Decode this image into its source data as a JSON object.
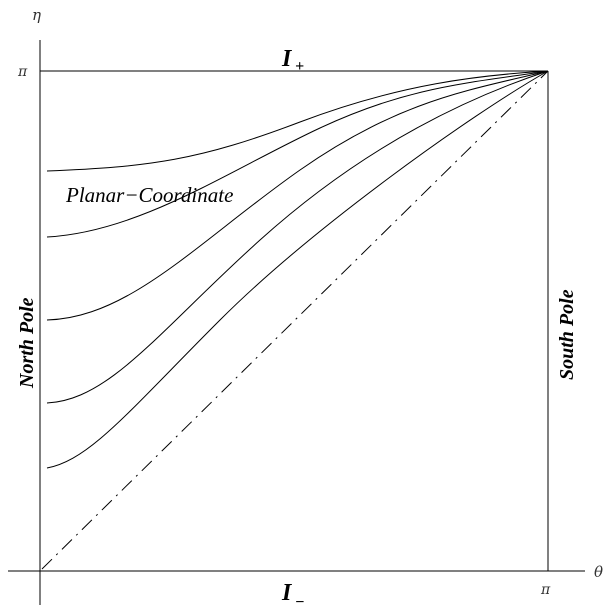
{
  "axes": {
    "x_name": "θ",
    "y_name": "η",
    "x_tick_pi": "π",
    "y_tick_pi": "π"
  },
  "labels": {
    "top_I": "I",
    "top_sub": "+",
    "bottom_I": "I",
    "bottom_sub": "−",
    "north_pole": "North Pole",
    "south_pole": "South Pole",
    "planar": "Planar−Coordinate"
  }
}
